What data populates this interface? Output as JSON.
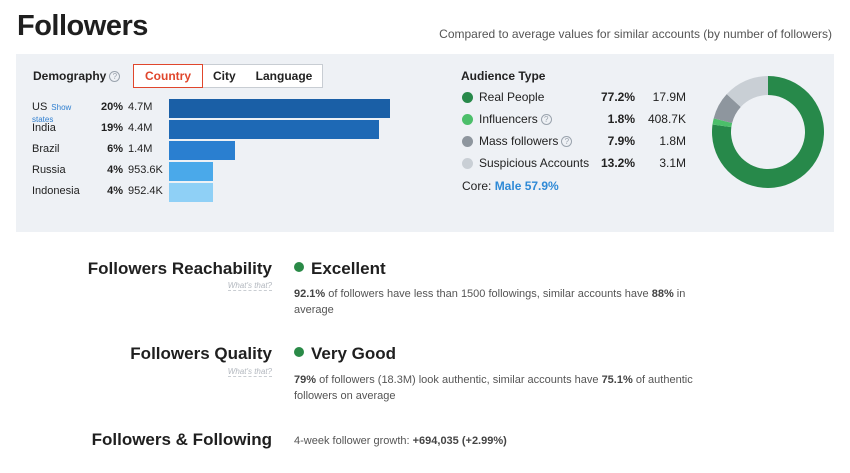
{
  "header": {
    "title": "Followers",
    "compare_note": "Compared to average values for similar accounts (by number of followers)"
  },
  "demography": {
    "label": "Demography",
    "info_glyph": "?",
    "tabs": [
      {
        "label": "Country",
        "active": true
      },
      {
        "label": "City",
        "active": false
      },
      {
        "label": "Language",
        "active": false
      }
    ],
    "show_states": "Show states",
    "rows": [
      {
        "name": "US",
        "pct": "20%",
        "count": "4.7M",
        "value": 20,
        "color": "#1a5fa6"
      },
      {
        "name": "India",
        "pct": "19%",
        "count": "4.4M",
        "value": 19,
        "color": "#1e69b5"
      },
      {
        "name": "Brazil",
        "pct": "6%",
        "count": "1.4M",
        "value": 6,
        "color": "#2a7fd0"
      },
      {
        "name": "Russia",
        "pct": "4%",
        "count": "953.6K",
        "value": 4,
        "color": "#4aa9ea"
      },
      {
        "name": "Indonesia",
        "pct": "4%",
        "count": "952.4K",
        "value": 4,
        "color": "#8fd0f6"
      }
    ]
  },
  "audience": {
    "title": "Audience Type",
    "items": [
      {
        "label": "Real People",
        "pct": "77.2%",
        "count": "17.9M",
        "value": 77.2,
        "color": "#27894a",
        "info": false
      },
      {
        "label": "Influencers",
        "pct": "1.8%",
        "count": "408.7K",
        "value": 1.8,
        "color": "#4cbf6a",
        "info": true
      },
      {
        "label": "Mass followers",
        "pct": "7.9%",
        "count": "1.8M",
        "value": 7.9,
        "color": "#8e969e",
        "info": true
      },
      {
        "label": "Suspicious Accounts",
        "pct": "13.2%",
        "count": "3.1M",
        "value": 13.2,
        "color": "#c9cfd5",
        "info": false
      }
    ],
    "core_label": "Core:",
    "core_value": "Male 57.9%"
  },
  "metrics": {
    "reachability": {
      "label": "Followers Reachability",
      "whats": "What's that?",
      "status": "Excellent",
      "desc_v1": "92.1%",
      "desc_t1": " of followers have less than 1500 followings, similar accounts have ",
      "desc_v2": "88%",
      "desc_t2": " in average"
    },
    "quality": {
      "label": "Followers Quality",
      "whats": "What's that?",
      "status": "Very Good",
      "desc_v1": "79%",
      "desc_t1": " of followers (18.3M) look authentic, similar accounts have ",
      "desc_v2": "75.1%",
      "desc_t2": " of authentic followers on average"
    },
    "following": {
      "label": "Followers & Following",
      "growth_label": "4-week follower growth: ",
      "growth_value": "+694,035 (+2.99%)"
    }
  }
}
